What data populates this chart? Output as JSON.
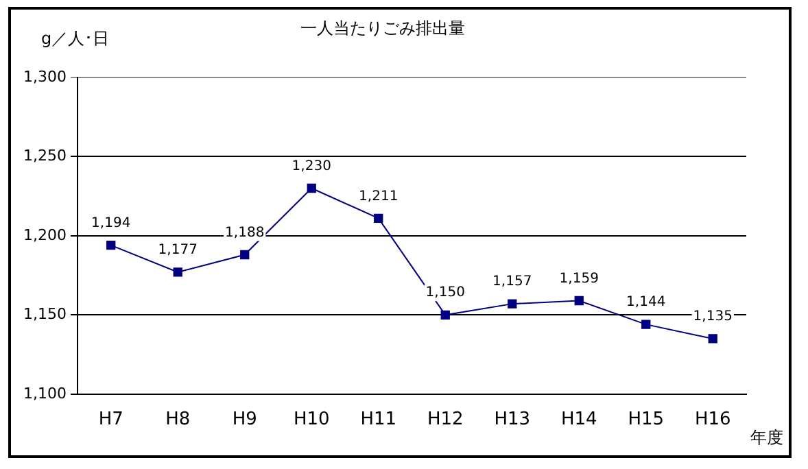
{
  "chart_data": {
    "type": "line",
    "title": "一人当たりごみ排出量",
    "ylabel": "g／人･日",
    "xlabel": "年度",
    "categories": [
      "H7",
      "H8",
      "H9",
      "H10",
      "H11",
      "H12",
      "H13",
      "H14",
      "H15",
      "H16"
    ],
    "series": [
      {
        "color": "#000080",
        "values": [
          1194,
          1177,
          1188,
          1230,
          1211,
          1150,
          1157,
          1159,
          1144,
          1135
        ],
        "value_labels": [
          "1,194",
          "1,177",
          "1,188",
          "1,230",
          "1,211",
          "1,150",
          "1,157",
          "1,159",
          "1,144",
          "1,135"
        ]
      }
    ],
    "ylim": [
      1100,
      1300
    ],
    "yticks": [
      {
        "value": 1100,
        "label": "1,100"
      },
      {
        "value": 1150,
        "label": "1,150"
      },
      {
        "value": 1200,
        "label": "1,200"
      },
      {
        "value": 1250,
        "label": "1,250"
      },
      {
        "value": 1300,
        "label": "1,300"
      }
    ],
    "grid": "y",
    "marker": "square",
    "legend": false
  }
}
